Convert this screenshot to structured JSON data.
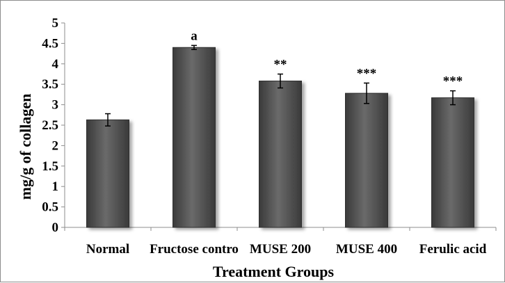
{
  "chart_data": {
    "type": "bar",
    "categories": [
      "Normal",
      "Fructose contro",
      "MUSE 200",
      "MUSE 400",
      "Ferulic acid"
    ],
    "values": [
      2.63,
      4.4,
      3.58,
      3.28,
      3.17
    ],
    "errors": [
      0.15,
      0.05,
      0.17,
      0.25,
      0.17
    ],
    "annotations": [
      "",
      "a",
      "**",
      "***",
      "***"
    ],
    "title": "",
    "xlabel": "Treatment Groups",
    "ylabel": "mg/g of collagen",
    "ylim": [
      0,
      5
    ],
    "yticks": [
      "0",
      "0.5",
      "1",
      "1.5",
      "2",
      "2.5",
      "3",
      "3.5",
      "4",
      "4.5",
      "5"
    ],
    "bar_color": "#5a5a5a",
    "grid": false,
    "legend": "none"
  }
}
